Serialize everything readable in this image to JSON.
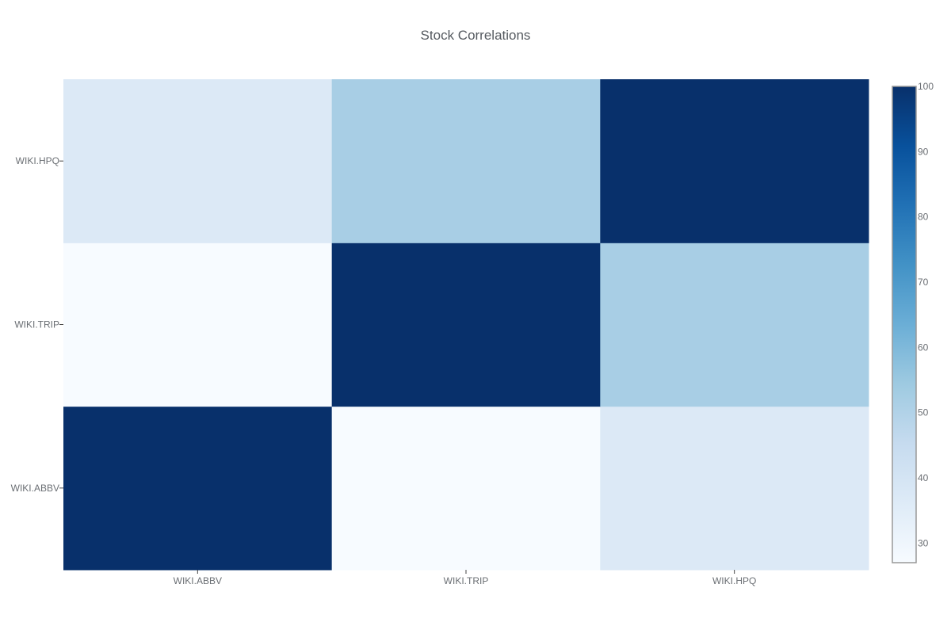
{
  "chart_data": {
    "type": "heatmap",
    "title": "Stock Correlations",
    "x": [
      "WIKI.ABBV",
      "WIKI.TRIP",
      "WIKI.HPQ"
    ],
    "y": [
      "WIKI.ABBV",
      "WIKI.TRIP",
      "WIKI.HPQ"
    ],
    "z": [
      [
        100,
        27,
        37
      ],
      [
        27,
        100,
        52
      ],
      [
        37,
        52,
        100
      ]
    ],
    "colorscale": "Blues",
    "colorbar": {
      "range": [
        27,
        100
      ],
      "ticks": [
        30,
        40,
        50,
        60,
        70,
        80,
        90,
        100
      ],
      "labels": [
        "30",
        "40",
        "50",
        "60",
        "70",
        "80",
        "90",
        "100"
      ]
    },
    "xlabel": "",
    "ylabel": ""
  }
}
